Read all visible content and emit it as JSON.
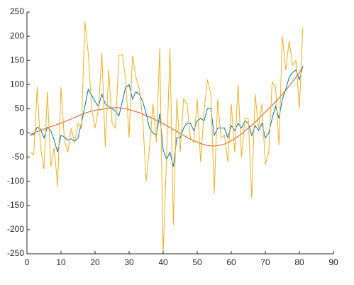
{
  "chart_data": {
    "type": "line",
    "x": [
      1,
      2,
      3,
      4,
      5,
      6,
      7,
      8,
      9,
      10,
      11,
      12,
      13,
      14,
      15,
      16,
      17,
      18,
      19,
      20,
      21,
      22,
      23,
      24,
      25,
      26,
      27,
      28,
      29,
      30,
      31,
      32,
      33,
      34,
      35,
      36,
      37,
      38,
      39,
      40,
      41,
      42,
      43,
      44,
      45,
      46,
      47,
      48,
      49,
      50,
      51,
      52,
      53,
      54,
      55,
      56,
      57,
      58,
      59,
      60,
      61,
      62,
      63,
      64,
      65,
      66,
      67,
      68,
      69,
      70,
      71,
      72,
      73,
      74,
      75,
      76,
      77,
      78,
      79,
      80,
      81
    ],
    "series": [
      {
        "color": "#0072bd",
        "values": [
          -5,
          -3,
          12,
          8,
          -10,
          12,
          5,
          -15,
          -40,
          -5,
          -8,
          -15,
          -12,
          -18,
          -10,
          20,
          55,
          90,
          78,
          65,
          55,
          80,
          60,
          55,
          50,
          45,
          35,
          65,
          95,
          100,
          70,
          85,
          80,
          65,
          40,
          10,
          0,
          -5,
          40,
          -35,
          -55,
          -40,
          -70,
          -10,
          -10,
          10,
          20,
          20,
          5,
          25,
          30,
          25,
          50,
          50,
          -5,
          10,
          10,
          10,
          -10,
          15,
          5,
          20,
          10,
          25,
          20,
          -5,
          15,
          5,
          20,
          -10,
          0,
          30,
          55,
          30,
          70,
          90,
          115,
          125,
          130,
          110,
          138
        ]
      },
      {
        "color": "#d95319",
        "values": [
          -3,
          0,
          3,
          5,
          8,
          10,
          13,
          15,
          18,
          20,
          23,
          26,
          29,
          32,
          35,
          38,
          41,
          43,
          45,
          47,
          48,
          49,
          50,
          51,
          52,
          52,
          52,
          51,
          50,
          48,
          46,
          44,
          42,
          39,
          36,
          33,
          30,
          26,
          23,
          19,
          15,
          11,
          7,
          3,
          -1,
          -5,
          -9,
          -13,
          -16,
          -19,
          -22,
          -24,
          -26,
          -27,
          -27,
          -26,
          -25,
          -23,
          -20,
          -16,
          -12,
          -7,
          -2,
          4,
          10,
          16,
          22,
          29,
          36,
          43,
          50,
          57,
          64,
          72,
          80,
          88,
          97,
          106,
          115,
          125,
          135
        ]
      },
      {
        "color": "#edb120",
        "values": [
          -40,
          -45,
          95,
          -30,
          -75,
          85,
          -70,
          -30,
          -110,
          95,
          -15,
          -40,
          10,
          -20,
          20,
          10,
          230,
          165,
          50,
          10,
          50,
          165,
          -30,
          130,
          20,
          10,
          160,
          162,
          110,
          -10,
          160,
          115,
          90,
          30,
          -100,
          -30,
          60,
          -20,
          175,
          -250,
          -50,
          175,
          -190,
          70,
          -40,
          70,
          60,
          -10,
          -20,
          70,
          -60,
          45,
          110,
          80,
          -125,
          70,
          -10,
          -5,
          -60,
          60,
          -40,
          100,
          -50,
          30,
          30,
          -135,
          80,
          10,
          60,
          -65,
          -40,
          105,
          95,
          -25,
          200,
          130,
          190,
          140,
          150,
          50,
          218
        ]
      }
    ],
    "xlim": [
      0,
      90
    ],
    "xticks": [
      0,
      10,
      20,
      30,
      40,
      50,
      60,
      70,
      80,
      90
    ],
    "ylim": [
      -250,
      250
    ],
    "yticks": [
      -250,
      -200,
      -150,
      -100,
      -50,
      0,
      50,
      100,
      150,
      200,
      250
    ]
  }
}
